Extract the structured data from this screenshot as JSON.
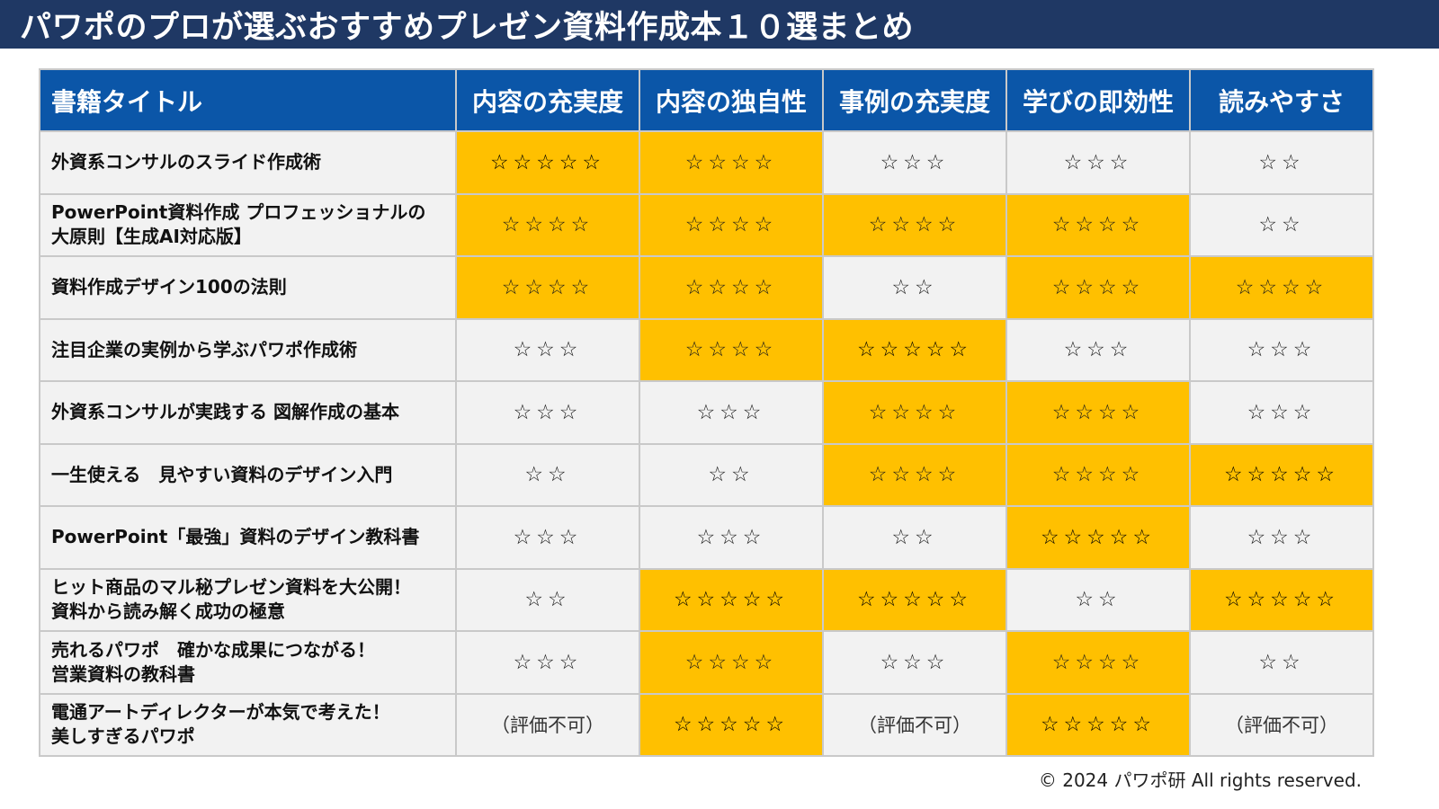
{
  "page_title": "パワポのプロが選ぶおすすめプレゼン資料作成本１０選まとめ",
  "table": {
    "headers": [
      "書籍タイトル",
      "内容の充実度",
      "内容の独自性",
      "事例の充実度",
      "学びの即効性",
      "読みやすさ"
    ],
    "rows": [
      {
        "title_lines": [
          "外資系コンサルのスライド作成術"
        ],
        "cells": [
          {
            "rating": 5,
            "highlight": true
          },
          {
            "rating": 4,
            "highlight": true
          },
          {
            "rating": 3,
            "highlight": false
          },
          {
            "rating": 3,
            "highlight": false
          },
          {
            "rating": 2,
            "highlight": false
          }
        ]
      },
      {
        "title_lines": [
          "PowerPoint資料作成 プロフェッショナルの",
          "大原則【生成AI対応版】"
        ],
        "cells": [
          {
            "rating": 4,
            "highlight": true
          },
          {
            "rating": 4,
            "highlight": true
          },
          {
            "rating": 4,
            "highlight": true
          },
          {
            "rating": 4,
            "highlight": true
          },
          {
            "rating": 2,
            "highlight": false
          }
        ]
      },
      {
        "title_lines": [
          "資料作成デザイン100の法則"
        ],
        "cells": [
          {
            "rating": 4,
            "highlight": true
          },
          {
            "rating": 4,
            "highlight": true
          },
          {
            "rating": 2,
            "highlight": false
          },
          {
            "rating": 4,
            "highlight": true
          },
          {
            "rating": 4,
            "highlight": true
          }
        ]
      },
      {
        "title_lines": [
          "注目企業の実例から学ぶパワポ作成術"
        ],
        "cells": [
          {
            "rating": 3,
            "highlight": false
          },
          {
            "rating": 4,
            "highlight": true
          },
          {
            "rating": 5,
            "highlight": true
          },
          {
            "rating": 3,
            "highlight": false
          },
          {
            "rating": 3,
            "highlight": false
          }
        ]
      },
      {
        "title_lines": [
          "外資系コンサルが実践する 図解作成の基本"
        ],
        "cells": [
          {
            "rating": 3,
            "highlight": false
          },
          {
            "rating": 3,
            "highlight": false
          },
          {
            "rating": 4,
            "highlight": true
          },
          {
            "rating": 4,
            "highlight": true
          },
          {
            "rating": 3,
            "highlight": false
          }
        ]
      },
      {
        "title_lines": [
          "一生使える　見やすい資料のデザイン入門"
        ],
        "cells": [
          {
            "rating": 2,
            "highlight": false
          },
          {
            "rating": 2,
            "highlight": false
          },
          {
            "rating": 4,
            "highlight": true
          },
          {
            "rating": 4,
            "highlight": true
          },
          {
            "rating": 5,
            "highlight": true
          }
        ]
      },
      {
        "title_lines": [
          "PowerPoint「最強」資料のデザイン教科書"
        ],
        "cells": [
          {
            "rating": 3,
            "highlight": false
          },
          {
            "rating": 3,
            "highlight": false
          },
          {
            "rating": 2,
            "highlight": false
          },
          {
            "rating": 5,
            "highlight": true
          },
          {
            "rating": 3,
            "highlight": false
          }
        ]
      },
      {
        "title_lines": [
          "ヒット商品のマル秘プレゼン資料を大公開！",
          "資料から読み解く成功の極意"
        ],
        "cells": [
          {
            "rating": 2,
            "highlight": false
          },
          {
            "rating": 5,
            "highlight": true
          },
          {
            "rating": 5,
            "highlight": true
          },
          {
            "rating": 2,
            "highlight": false
          },
          {
            "rating": 5,
            "highlight": true
          }
        ]
      },
      {
        "title_lines": [
          "売れるパワポ　確かな成果につながる！",
          "営業資料の教科書"
        ],
        "cells": [
          {
            "rating": 3,
            "highlight": false
          },
          {
            "rating": 4,
            "highlight": true
          },
          {
            "rating": 3,
            "highlight": false
          },
          {
            "rating": 4,
            "highlight": true
          },
          {
            "rating": 2,
            "highlight": false
          }
        ]
      },
      {
        "title_lines": [
          "電通アートディレクターが本気で考えた！",
          "美しすぎるパワポ"
        ],
        "cells": [
          {
            "rating": null,
            "text": "（評価不可）",
            "highlight": false
          },
          {
            "rating": 5,
            "highlight": true
          },
          {
            "rating": null,
            "text": "（評価不可）",
            "highlight": false
          },
          {
            "rating": 5,
            "highlight": true
          },
          {
            "rating": null,
            "text": "（評価不可）",
            "highlight": false
          }
        ]
      }
    ]
  },
  "star_glyph": "☆",
  "colors": {
    "title_bar": "#1F3864",
    "header_bg": "#0B56A8",
    "highlight": "#FFC000",
    "cell_bg": "#F2F2F2",
    "border": "#C9C9C9"
  },
  "footer": "© 2024 パワポ研 All rights reserved."
}
